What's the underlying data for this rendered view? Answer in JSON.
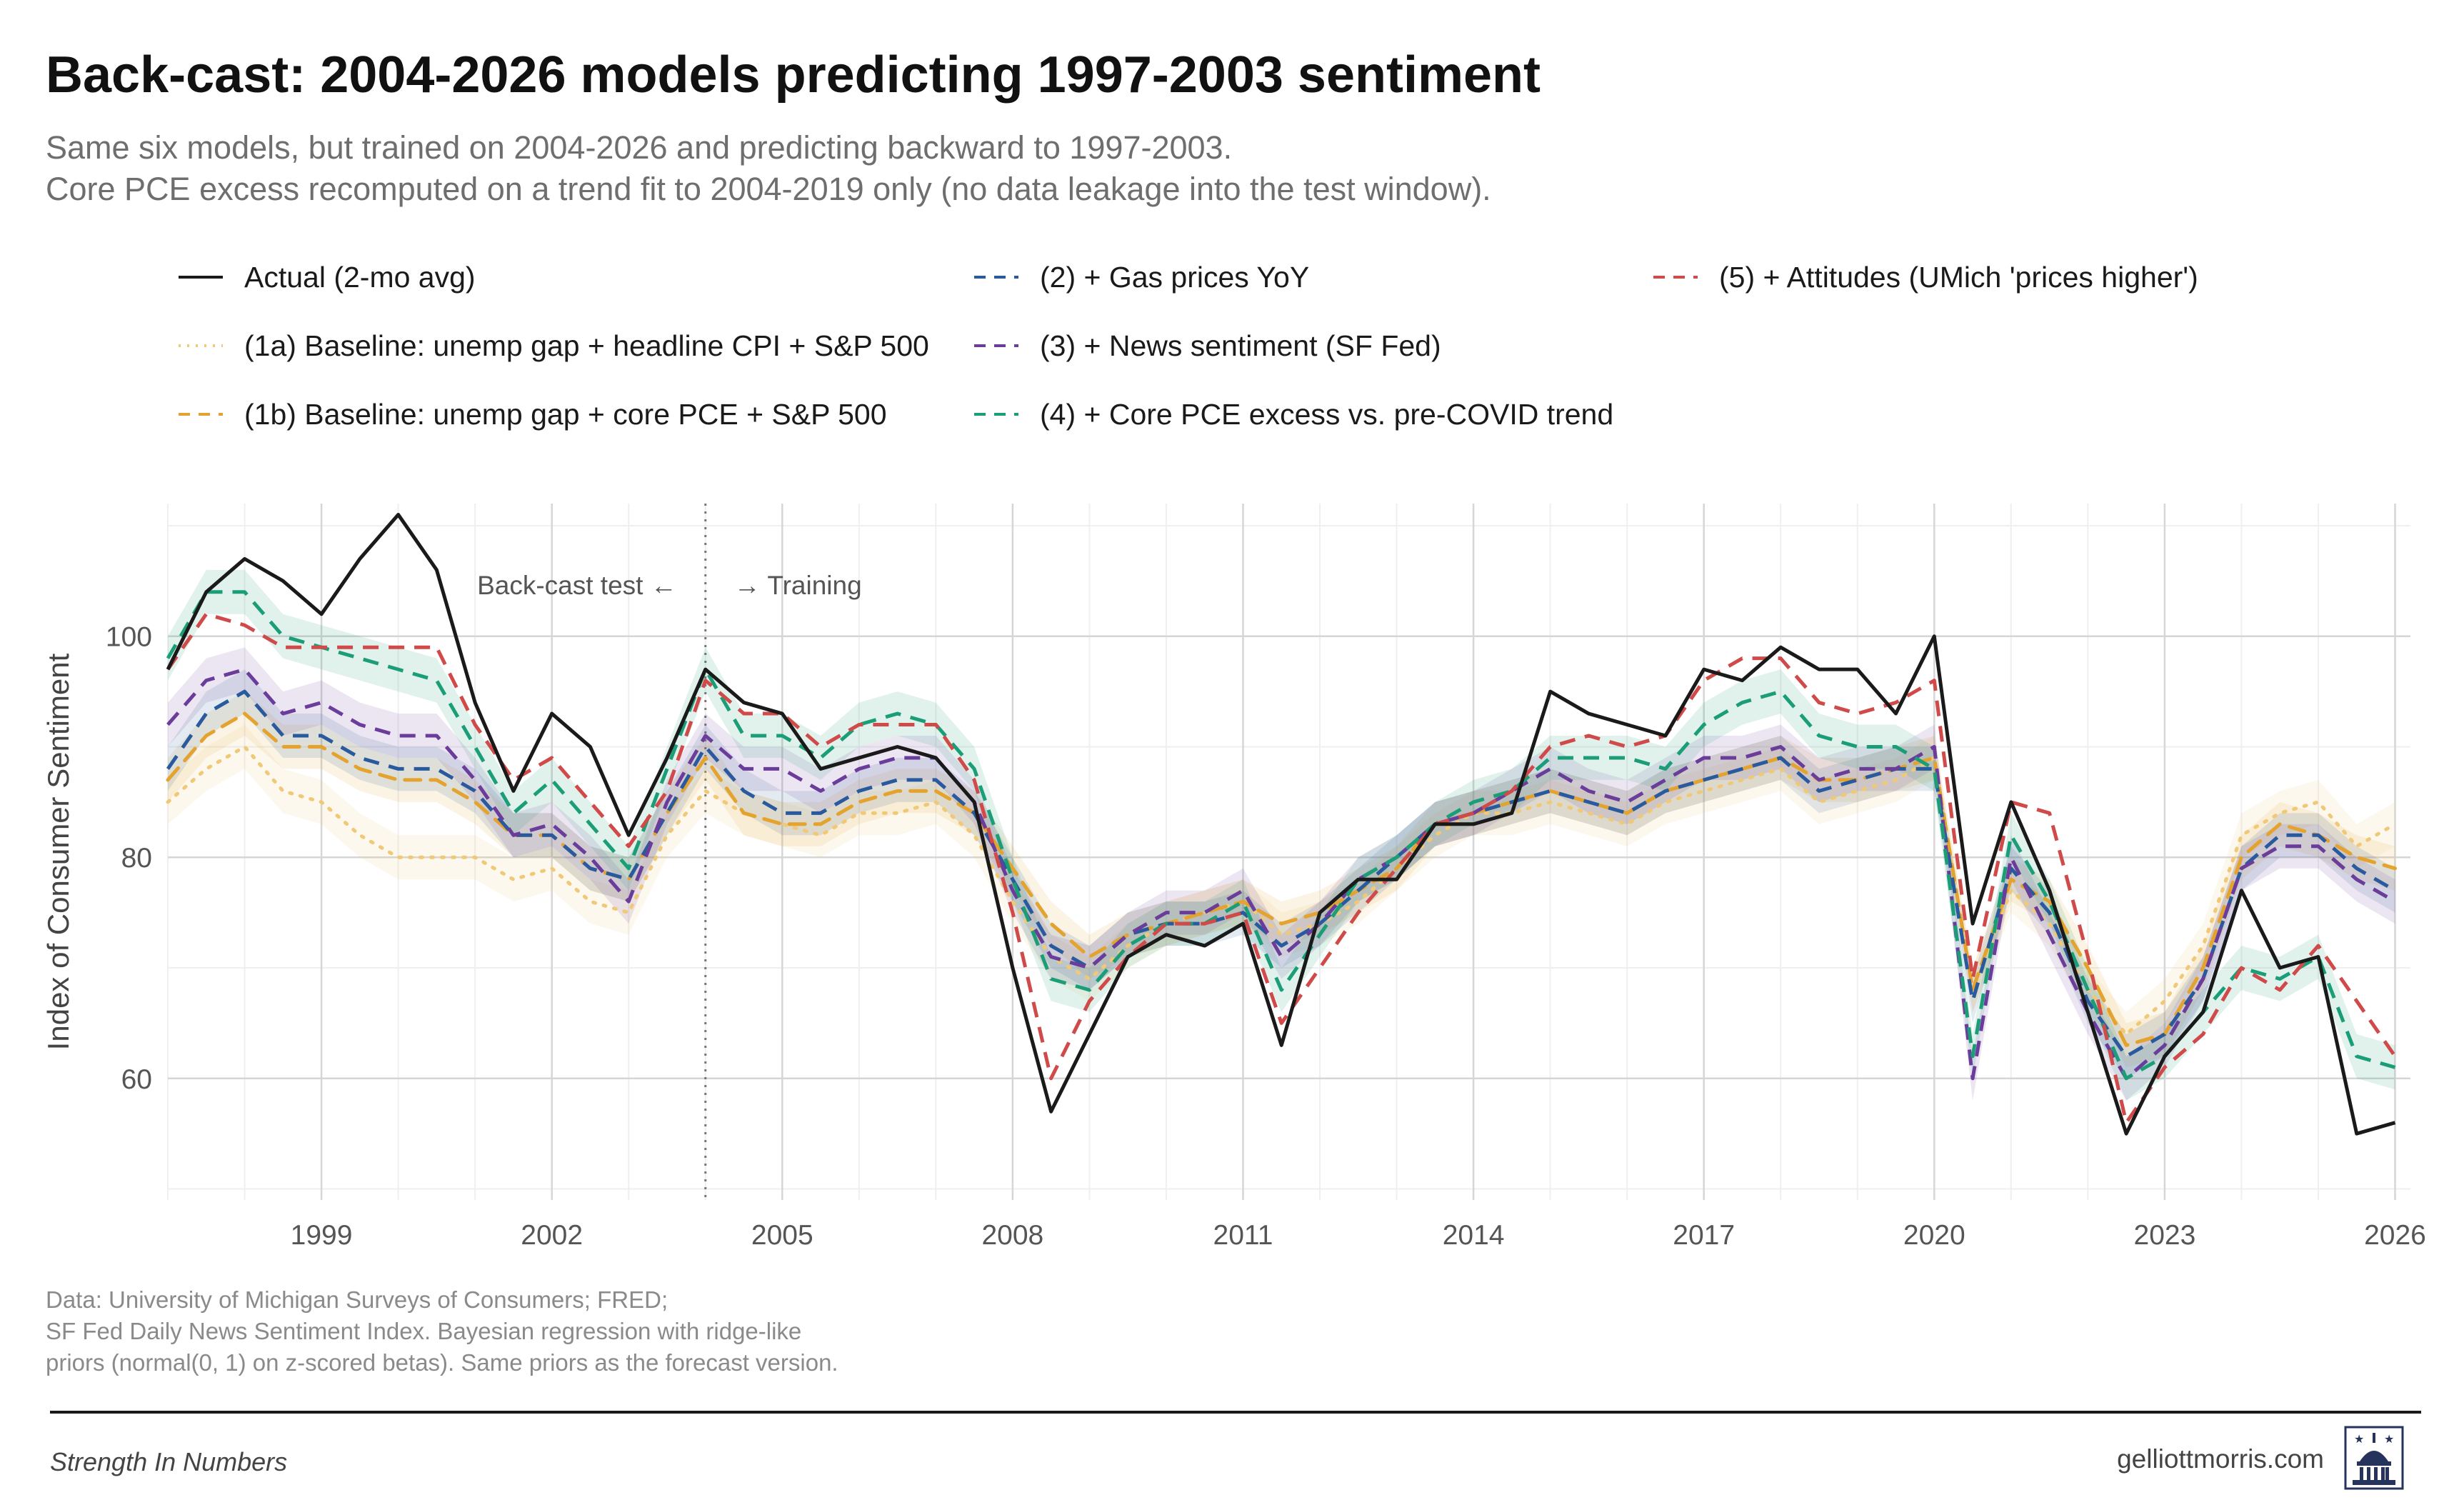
{
  "title": "Back-cast: 2004-2026 models predicting 1997-2003 sentiment",
  "subtitle": [
    "Same six models, but trained on 2004-2026 and predicting backward to 1997-2003.",
    "Core PCE excess recomputed on a trend fit to 2004-2019 only (no data leakage into the test window)."
  ],
  "caption": [
    "Data: University of Michigan Surveys of Consumers; FRED;",
    "SF Fed Daily News Sentiment Index. Bayesian regression with ridge-like",
    "priors (normal(0, 1) on z-scored betas). Same priors as the forecast version."
  ],
  "footer": {
    "brand": "Strength In Numbers",
    "site": "gelliottmorris.com",
    "logo_icon": "capitol-dome-icon"
  },
  "chart_data": {
    "type": "line",
    "title": "Back-cast: 2004-2026 models predicting 1997-2003 sentiment",
    "xlabel": "",
    "ylabel": "Index of Consumer Sentiment",
    "xlim": [
      1997.0,
      2026.2
    ],
    "ylim": [
      49,
      112
    ],
    "x_ticks": [
      1999,
      2002,
      2005,
      2008,
      2011,
      2014,
      2017,
      2020,
      2023,
      2026
    ],
    "y_ticks": [
      60,
      80,
      100
    ],
    "grid": true,
    "legend_position": "top",
    "annotations": {
      "divider_x": 2004.0,
      "left_label": "Back-cast test ←",
      "right_label": "→ Training"
    },
    "x": [
      1997.0,
      1997.5,
      1998.0,
      1998.5,
      1999.0,
      1999.5,
      2000.0,
      2000.5,
      2001.0,
      2001.5,
      2002.0,
      2002.5,
      2003.0,
      2003.5,
      2004.0,
      2004.5,
      2005.0,
      2005.5,
      2006.0,
      2006.5,
      2007.0,
      2007.5,
      2008.0,
      2008.5,
      2009.0,
      2009.5,
      2010.0,
      2010.5,
      2011.0,
      2011.5,
      2012.0,
      2012.5,
      2013.0,
      2013.5,
      2014.0,
      2014.5,
      2015.0,
      2015.5,
      2016.0,
      2016.5,
      2017.0,
      2017.5,
      2018.0,
      2018.5,
      2019.0,
      2019.5,
      2020.0,
      2020.5,
      2021.0,
      2021.5,
      2022.0,
      2022.5,
      2023.0,
      2023.5,
      2024.0,
      2024.5,
      2025.0,
      2025.5,
      2026.0
    ],
    "series": [
      {
        "name": "Actual (2-mo avg)",
        "color": "#1a1a1a",
        "dash": "solid",
        "values": [
          97,
          104,
          107,
          105,
          102,
          107,
          111,
          106,
          94,
          86,
          93,
          90,
          82,
          89,
          97,
          94,
          93,
          88,
          89,
          90,
          89,
          85,
          70,
          57,
          64,
          71,
          73,
          72,
          74,
          63,
          75,
          78,
          78,
          83,
          83,
          84,
          95,
          93,
          92,
          91,
          97,
          96,
          99,
          97,
          97,
          93,
          100,
          74,
          85,
          77,
          66,
          55,
          62,
          66,
          77,
          70,
          71,
          55,
          56
        ]
      },
      {
        "name": "(1a) Baseline: unemp gap + headline CPI + S&P 500",
        "color": "#f0c978",
        "dash": "dot",
        "band": true,
        "values": [
          85,
          88,
          90,
          86,
          85,
          82,
          80,
          80,
          80,
          78,
          79,
          76,
          75,
          82,
          86,
          84,
          83,
          82,
          84,
          84,
          85,
          82,
          76,
          71,
          69,
          72,
          74,
          75,
          76,
          73,
          74,
          76,
          79,
          82,
          84,
          84,
          85,
          84,
          83,
          85,
          86,
          87,
          88,
          85,
          86,
          87,
          89,
          68,
          77,
          74,
          68,
          64,
          67,
          72,
          82,
          84,
          85,
          81,
          83
        ]
      },
      {
        "name": "(1b) Baseline: unemp gap + core PCE + S&P 500",
        "color": "#e3a32e",
        "dash": "dash",
        "band": true,
        "values": [
          87,
          91,
          93,
          90,
          90,
          88,
          87,
          87,
          85,
          82,
          82,
          79,
          78,
          84,
          89,
          84,
          83,
          83,
          85,
          86,
          86,
          84,
          79,
          74,
          71,
          73,
          74,
          75,
          76,
          74,
          75,
          77,
          79,
          83,
          84,
          85,
          86,
          85,
          84,
          86,
          87,
          88,
          89,
          87,
          87,
          88,
          89,
          68,
          78,
          76,
          70,
          63,
          64,
          70,
          80,
          83,
          82,
          80,
          79
        ]
      },
      {
        "name": "(2) + Gas prices YoY",
        "color": "#2a5a9e",
        "dash": "dash",
        "band": true,
        "values": [
          88,
          93,
          95,
          91,
          91,
          89,
          88,
          88,
          86,
          82,
          82,
          79,
          78,
          84,
          90,
          86,
          84,
          84,
          86,
          87,
          87,
          84,
          78,
          72,
          70,
          73,
          74,
          74,
          75,
          72,
          74,
          77,
          80,
          83,
          84,
          85,
          86,
          85,
          84,
          86,
          87,
          88,
          89,
          86,
          87,
          88,
          88,
          67,
          79,
          75,
          67,
          62,
          64,
          69,
          79,
          82,
          82,
          79,
          77
        ]
      },
      {
        "name": "(3) + News sentiment (SF Fed)",
        "color": "#6a3d9a",
        "dash": "dash",
        "band": true,
        "values": [
          92,
          96,
          97,
          93,
          94,
          92,
          91,
          91,
          87,
          82,
          83,
          80,
          76,
          85,
          91,
          88,
          88,
          86,
          88,
          89,
          89,
          85,
          77,
          71,
          70,
          73,
          75,
          75,
          77,
          71,
          74,
          78,
          80,
          83,
          84,
          86,
          88,
          86,
          85,
          87,
          89,
          89,
          90,
          87,
          88,
          88,
          90,
          60,
          80,
          73,
          66,
          60,
          63,
          69,
          79,
          81,
          81,
          78,
          76
        ]
      },
      {
        "name": "(4) + Core PCE excess vs. pre-COVID trend",
        "color": "#1b9e77",
        "dash": "dash",
        "band": true,
        "values": [
          98,
          104,
          104,
          100,
          99,
          98,
          97,
          96,
          90,
          84,
          87,
          83,
          79,
          88,
          97,
          91,
          91,
          89,
          92,
          93,
          92,
          88,
          78,
          69,
          68,
          72,
          74,
          74,
          76,
          68,
          73,
          78,
          80,
          83,
          85,
          86,
          89,
          89,
          89,
          88,
          92,
          94,
          95,
          91,
          90,
          90,
          88,
          62,
          82,
          76,
          68,
          60,
          62,
          66,
          70,
          69,
          71,
          62,
          61
        ]
      },
      {
        "name": "(5) + Attitudes (UMich 'prices higher')",
        "color": "#d04a4a",
        "dash": "dash",
        "values": [
          97,
          102,
          101,
          99,
          99,
          99,
          99,
          99,
          92,
          87,
          89,
          85,
          81,
          86,
          96,
          93,
          93,
          90,
          92,
          92,
          92,
          87,
          75,
          60,
          67,
          71,
          74,
          74,
          75,
          65,
          70,
          75,
          79,
          83,
          84,
          86,
          90,
          91,
          90,
          91,
          96,
          98,
          98,
          94,
          93,
          94,
          96,
          69,
          85,
          84,
          71,
          56,
          61,
          64,
          70,
          68,
          72,
          67,
          62
        ]
      }
    ]
  }
}
